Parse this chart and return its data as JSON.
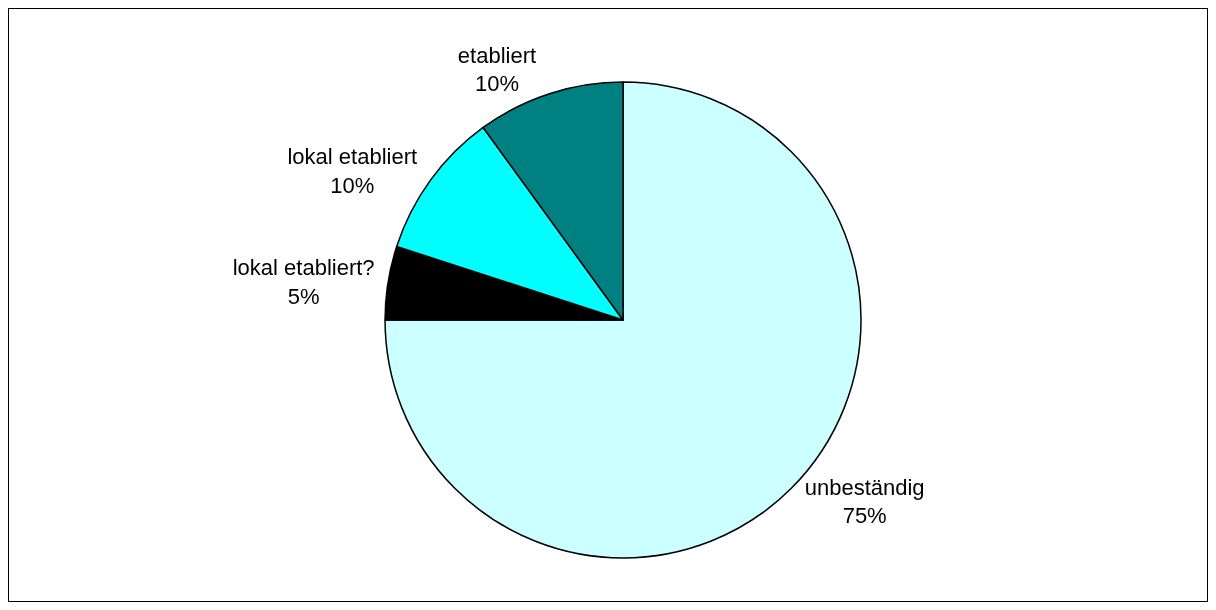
{
  "chart_data": {
    "type": "pie",
    "categories": [
      "unbeständig",
      "lokal etabliert?",
      "lokal etabliert",
      "etabliert"
    ],
    "values": [
      75,
      5,
      10,
      10
    ],
    "value_labels": [
      "75%",
      "5%",
      "10%",
      "10%"
    ],
    "colors": [
      "#ccffff",
      "#000000",
      "#00ffff",
      "#008080"
    ],
    "legend": false
  }
}
